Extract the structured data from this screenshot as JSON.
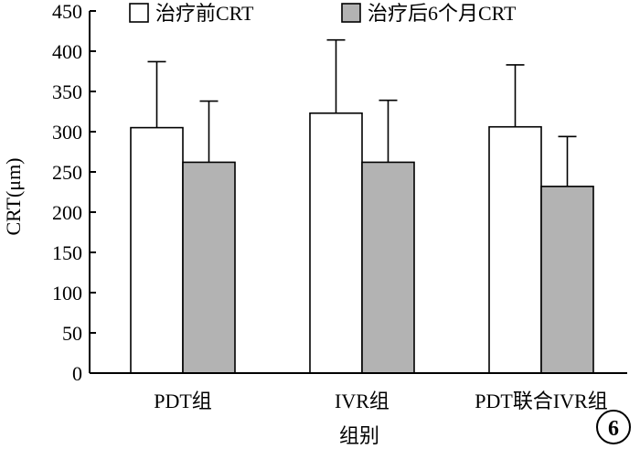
{
  "chart_data": {
    "type": "bar",
    "categories": [
      "PDT组",
      "IVR组",
      "PDT联合IVR组"
    ],
    "series": [
      {
        "name": "治疗前CRT",
        "values": [
          305,
          323,
          306
        ],
        "errors": [
          82,
          91,
          77
        ],
        "color": "#ffffff"
      },
      {
        "name": "治疗后6个月CRT",
        "values": [
          262,
          262,
          232
        ],
        "errors": [
          76,
          77,
          62
        ],
        "color": "#b3b3b3"
      }
    ],
    "xlabel": "组别",
    "ylabel": "CRT(μm)",
    "ylim": [
      0,
      450
    ],
    "yticks": [
      0,
      50,
      100,
      150,
      200,
      250,
      300,
      350,
      400,
      450
    ],
    "legend": "top",
    "error_bars": "positive-only",
    "grid": false
  },
  "badge": "6"
}
